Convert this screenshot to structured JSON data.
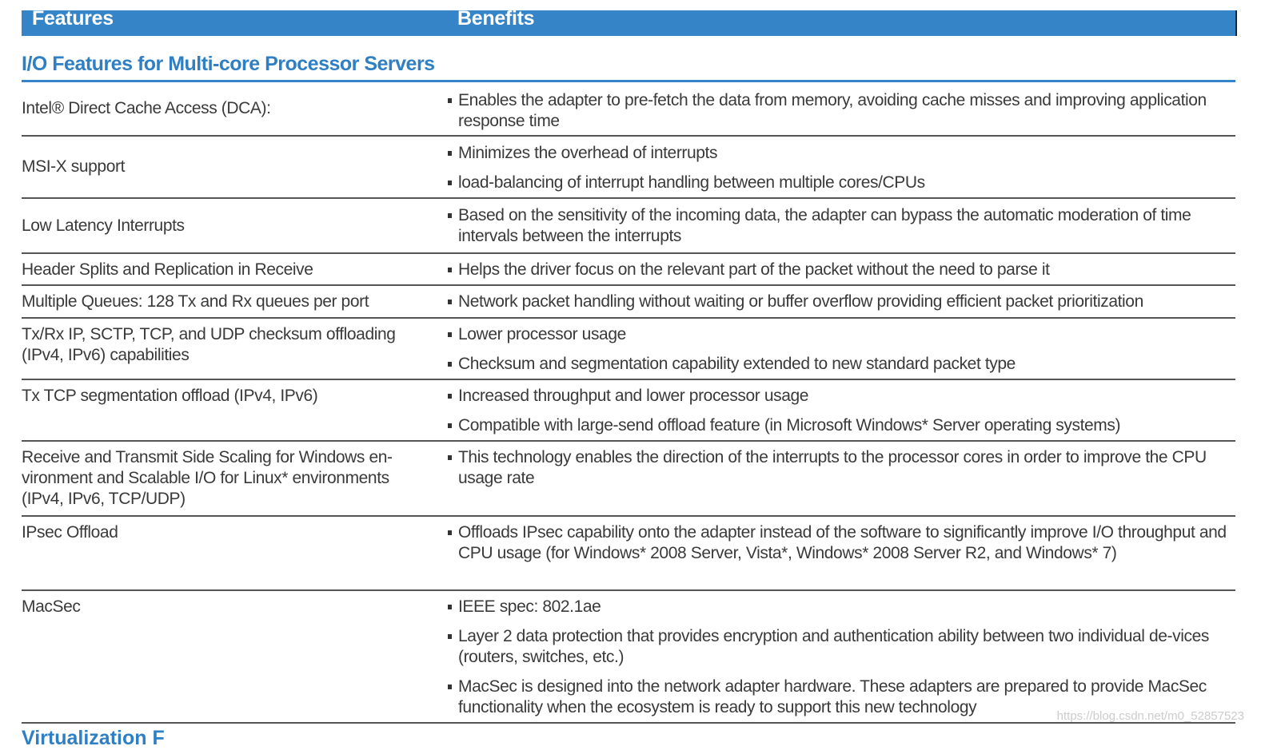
{
  "header": {
    "features": "Features",
    "benefits": "Benefits"
  },
  "section_title": "I/O Features for Multi-core Processor Servers",
  "rows": [
    {
      "feature": "Intel® Direct Cache Access (DCA):",
      "benefits": [
        "Enables the adapter to pre-fetch the data from memory, avoiding cache misses and improving application response time"
      ]
    },
    {
      "feature": "MSI-X support",
      "benefits": [
        "Minimizes the overhead of interrupts",
        "load-balancing of interrupt handling between multiple cores/CPUs"
      ]
    },
    {
      "feature": "Low Latency Interrupts",
      "benefits": [
        "Based on the sensitivity of the incoming data, the adapter can bypass the automatic moderation of time intervals between the interrupts"
      ]
    },
    {
      "feature": "Header Splits and Replication in Receive",
      "benefits": [
        "Helps the driver focus on the relevant part of the packet without the need to parse it"
      ]
    },
    {
      "feature": "Multiple Queues: 128 Tx and Rx queues per port",
      "benefits": [
        "Network packet handling without waiting or buffer overflow providing efficient packet prioritization"
      ]
    },
    {
      "feature": "Tx/Rx IP, SCTP, TCP, and UDP checksum offloading (IPv4, IPv6) capabilities",
      "benefits": [
        "Lower processor usage",
        "Checksum and segmentation capability extended to new standard packet type"
      ]
    },
    {
      "feature": "Tx TCP segmentation offload (IPv4, IPv6)",
      "benefits": [
        "Increased throughput and lower processor usage",
        "Compatible with large-send offload feature (in Microsoft Windows* Server operating systems)"
      ]
    },
    {
      "feature": "Receive and Transmit Side Scaling for Windows en-vironment and Scalable I/O for Linux* environments (IPv4, IPv6, TCP/UDP)",
      "benefits": [
        "This technology enables the direction of the interrupts to the processor cores in order to improve the CPU usage rate"
      ]
    },
    {
      "feature": "IPsec Offload",
      "benefits": [
        "Offloads IPsec capability onto the adapter instead of the software to significantly improve I/O throughput and CPU usage (for Windows* 2008 Server, Vista*, Windows* 2008 Server R2, and Windows* 7)"
      ]
    },
    {
      "feature": "MacSec",
      "benefits": [
        "IEEE spec: 802.1ae",
        "Layer 2 data protection that provides encryption and authentication ability between two individual de-vices (routers, switches, etc.)",
        "MacSec is designed into the network adapter hardware. These adapters are prepared to provide MacSec functionality when the ecosystem is ready to support this new technology"
      ]
    }
  ],
  "next_section_partial": "Virtualization F",
  "watermark": "https://blog.csdn.net/m0_52857523"
}
